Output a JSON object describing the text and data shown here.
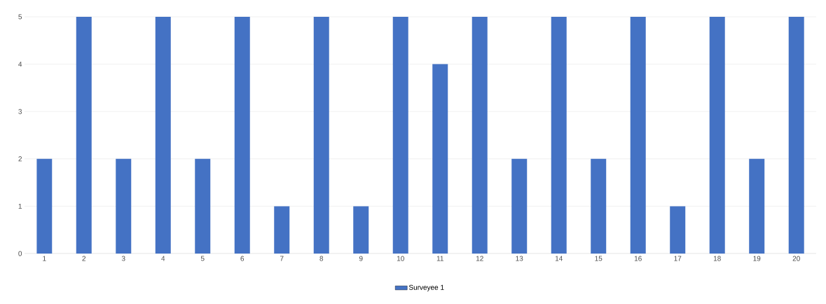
{
  "chart_data": {
    "type": "bar",
    "categories": [
      "1",
      "2",
      "3",
      "4",
      "5",
      "6",
      "7",
      "8",
      "9",
      "10",
      "11",
      "12",
      "13",
      "14",
      "15",
      "16",
      "17",
      "18",
      "19",
      "20"
    ],
    "series": [
      {
        "name": "Surveyee 1",
        "color": "#4472c4",
        "values": [
          2,
          5,
          2,
          5,
          2,
          5,
          1,
          5,
          1,
          5,
          4,
          5,
          2,
          5,
          2,
          5,
          1,
          5,
          2,
          5
        ]
      }
    ],
    "ylim": [
      0,
      5
    ],
    "yticks": [
      0,
      1,
      2,
      3,
      4,
      5
    ],
    "grid": "y",
    "legend": "bottom"
  }
}
